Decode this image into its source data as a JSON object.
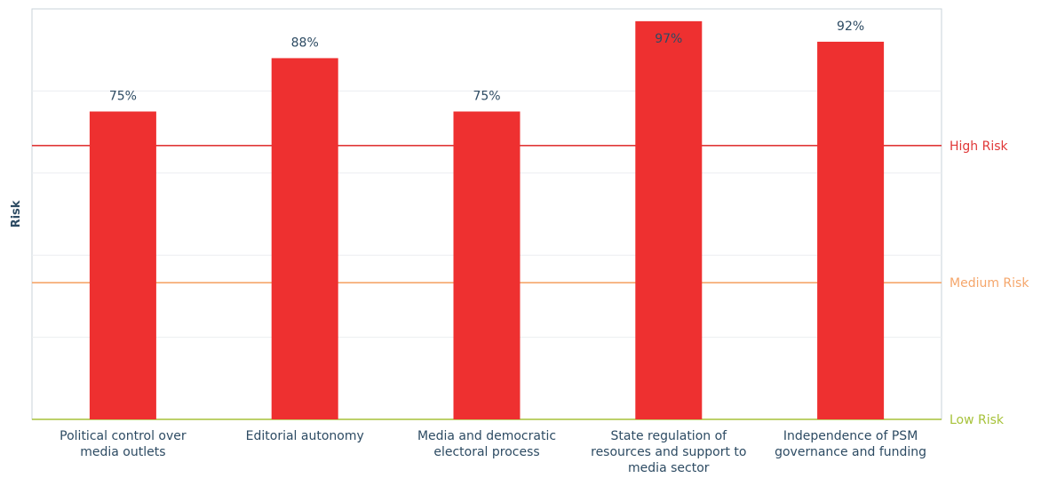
{
  "chart_data": {
    "type": "bar",
    "categories": [
      [
        "Political control over",
        "media outlets"
      ],
      [
        "Editorial autonomy"
      ],
      [
        "Media and democratic",
        "electoral process"
      ],
      [
        "State regulation of",
        "resources and support to",
        "media sector"
      ],
      [
        "Independence of PSM",
        "governance and funding"
      ]
    ],
    "values": [
      75,
      88,
      75,
      97,
      92
    ],
    "value_labels": [
      "75%",
      "88%",
      "75%",
      "97%",
      "92%"
    ],
    "ylabel": "Risk",
    "ylim": [
      0,
      100
    ],
    "bar_color": "#ee3030",
    "grid": true,
    "thresholds": [
      {
        "label": "High Risk",
        "value": 66.7,
        "color": "#e03838"
      },
      {
        "label": "Medium Risk",
        "value": 33.3,
        "color": "#f5a66b"
      },
      {
        "label": "Low Risk",
        "value": 0,
        "color": "#a7c23a"
      }
    ]
  }
}
